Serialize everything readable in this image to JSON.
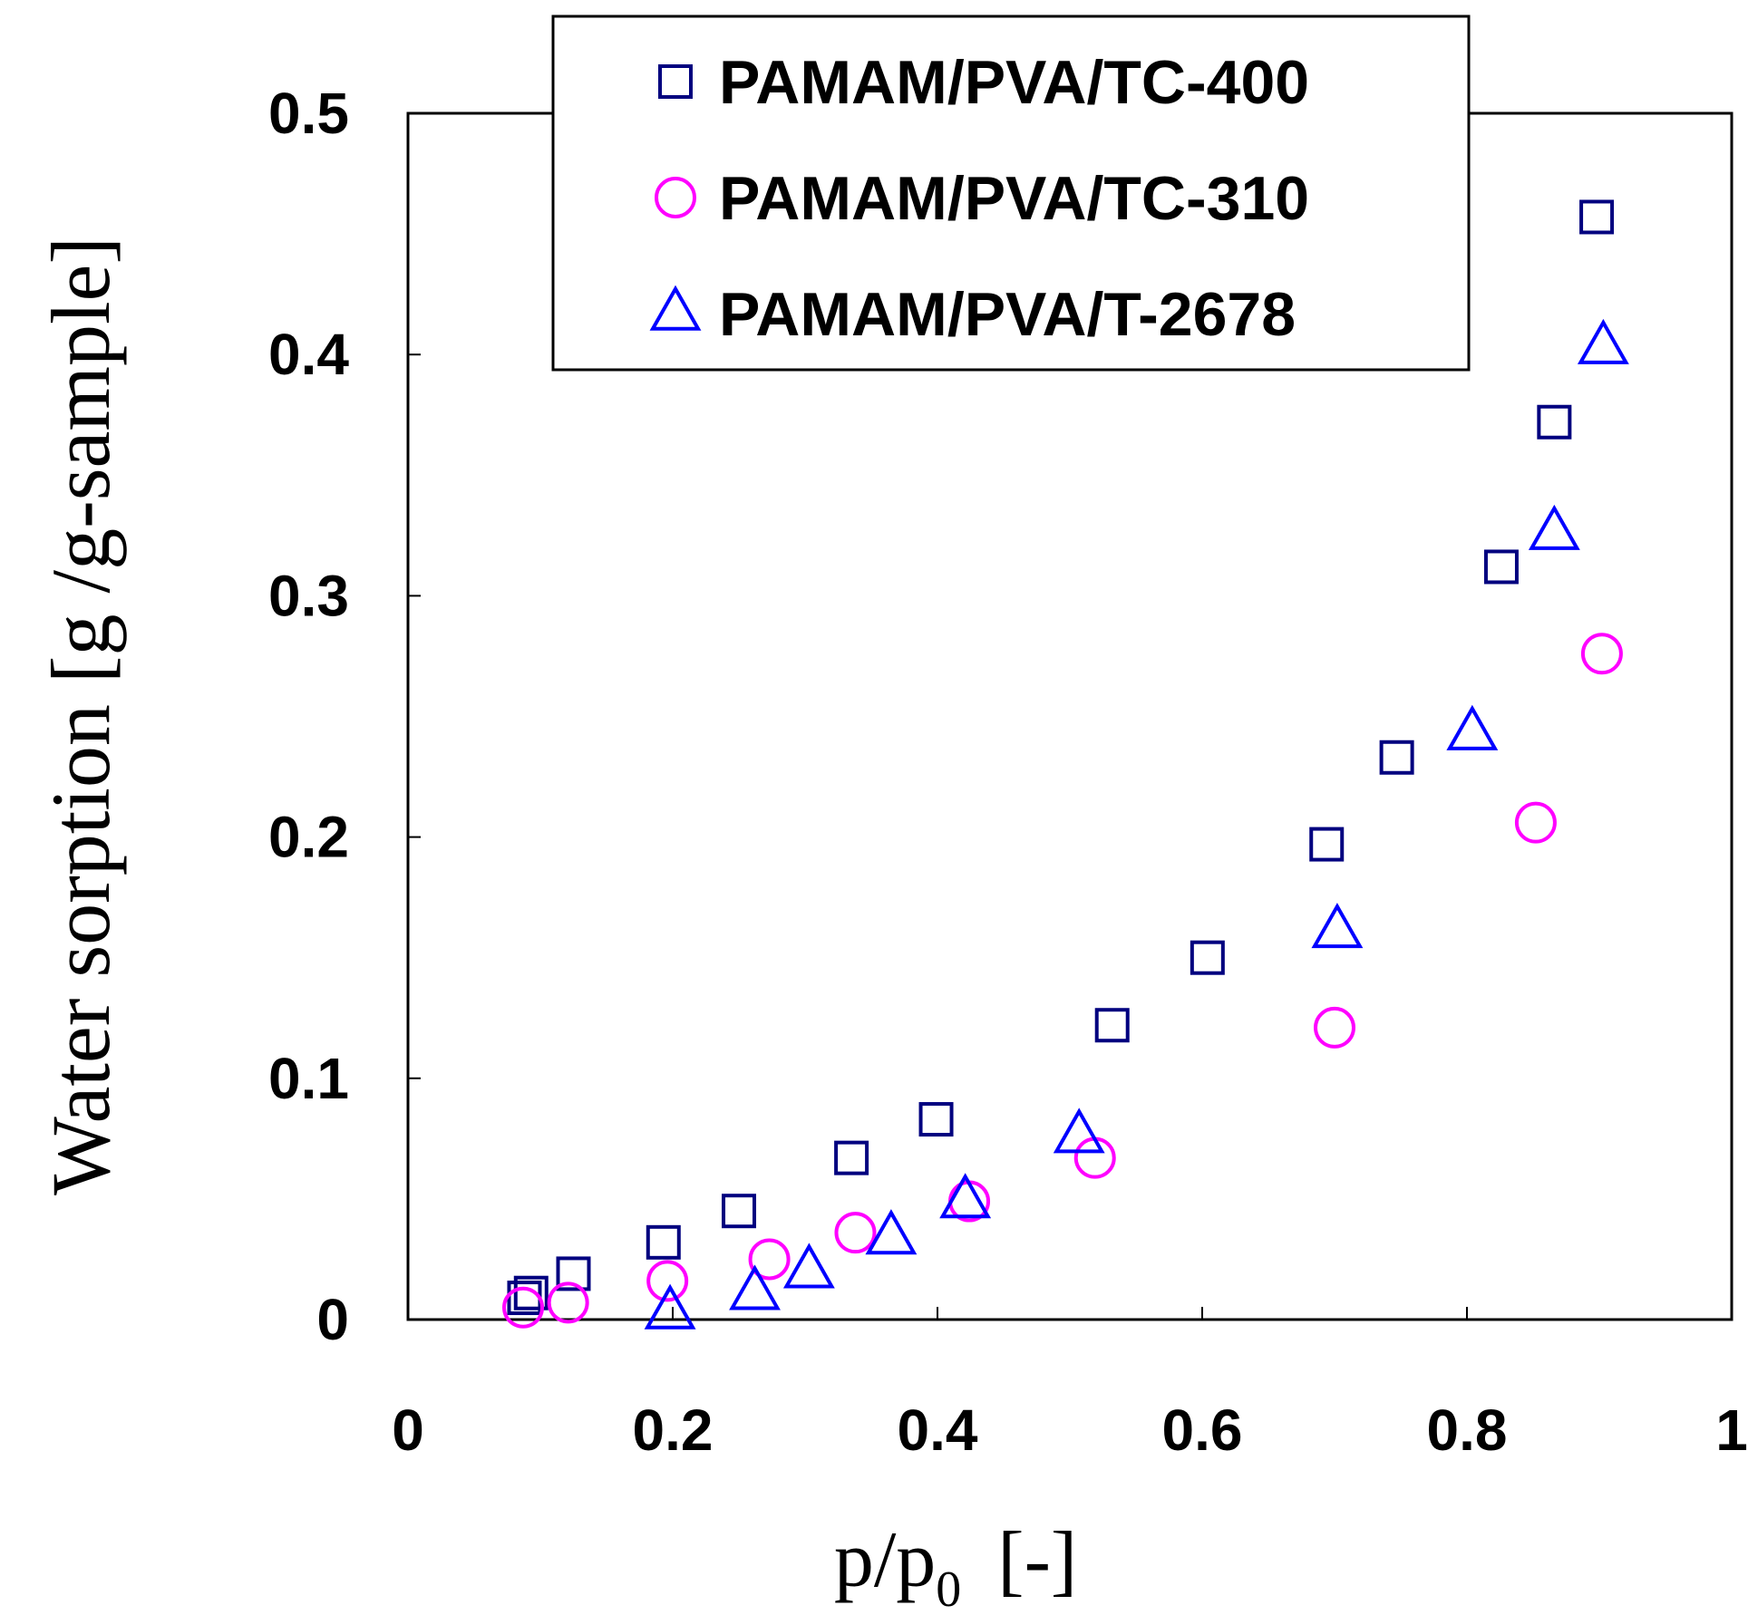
{
  "chart_data": {
    "type": "scatter",
    "title": "",
    "xlabel_main": "p/p",
    "xlabel_sub": "0",
    "xlabel_unit": "[-]",
    "ylabel": "Water sorption [g /g-sample]",
    "xlim": [
      0,
      1
    ],
    "ylim": [
      0,
      0.5
    ],
    "xticks": [
      {
        "value": 0,
        "label": "0"
      },
      {
        "value": 0.2,
        "label": "0.2"
      },
      {
        "value": 0.4,
        "label": "0.4"
      },
      {
        "value": 0.6,
        "label": "0.6"
      },
      {
        "value": 0.8,
        "label": "0.8"
      },
      {
        "value": 1,
        "label": "1"
      }
    ],
    "yticks": [
      {
        "value": 0,
        "label": "0"
      },
      {
        "value": 0.1,
        "label": "0.1"
      },
      {
        "value": 0.2,
        "label": "0.2"
      },
      {
        "value": 0.3,
        "label": "0.3"
      },
      {
        "value": 0.4,
        "label": "0.4"
      },
      {
        "value": 0.5,
        "label": "0.5"
      }
    ],
    "grid": false,
    "legend_position": "top-center",
    "series": [
      {
        "name": "PAMAM/PVA/TC-400",
        "marker": "square",
        "color": "#00007f",
        "points": [
          {
            "x": 0.088,
            "y": 0.009
          },
          {
            "x": 0.093,
            "y": 0.011
          },
          {
            "x": 0.125,
            "y": 0.019
          },
          {
            "x": 0.193,
            "y": 0.032
          },
          {
            "x": 0.25,
            "y": 0.045
          },
          {
            "x": 0.335,
            "y": 0.067
          },
          {
            "x": 0.399,
            "y": 0.083
          },
          {
            "x": 0.532,
            "y": 0.122
          },
          {
            "x": 0.604,
            "y": 0.15
          },
          {
            "x": 0.694,
            "y": 0.197
          },
          {
            "x": 0.747,
            "y": 0.233
          },
          {
            "x": 0.826,
            "y": 0.312
          },
          {
            "x": 0.866,
            "y": 0.372
          },
          {
            "x": 0.898,
            "y": 0.457
          }
        ]
      },
      {
        "name": "PAMAM/PVA/TC-310",
        "marker": "circle",
        "color": "#ff00ff",
        "points": [
          {
            "x": 0.087,
            "y": 0.005
          },
          {
            "x": 0.121,
            "y": 0.007
          },
          {
            "x": 0.196,
            "y": 0.016
          },
          {
            "x": 0.273,
            "y": 0.025
          },
          {
            "x": 0.338,
            "y": 0.036
          },
          {
            "x": 0.424,
            "y": 0.049
          },
          {
            "x": 0.519,
            "y": 0.067
          },
          {
            "x": 0.7,
            "y": 0.121
          },
          {
            "x": 0.852,
            "y": 0.206
          },
          {
            "x": 0.902,
            "y": 0.276
          }
        ]
      },
      {
        "name": "PAMAM/PVA/T-2678",
        "marker": "triangle",
        "color": "#0000ff",
        "points": [
          {
            "x": 0.198,
            "y": 0.003
          },
          {
            "x": 0.262,
            "y": 0.011
          },
          {
            "x": 0.303,
            "y": 0.02
          },
          {
            "x": 0.365,
            "y": 0.034
          },
          {
            "x": 0.421,
            "y": 0.049
          },
          {
            "x": 0.507,
            "y": 0.076
          },
          {
            "x": 0.702,
            "y": 0.161
          },
          {
            "x": 0.804,
            "y": 0.243
          },
          {
            "x": 0.866,
            "y": 0.326
          },
          {
            "x": 0.903,
            "y": 0.403
          }
        ]
      }
    ]
  }
}
